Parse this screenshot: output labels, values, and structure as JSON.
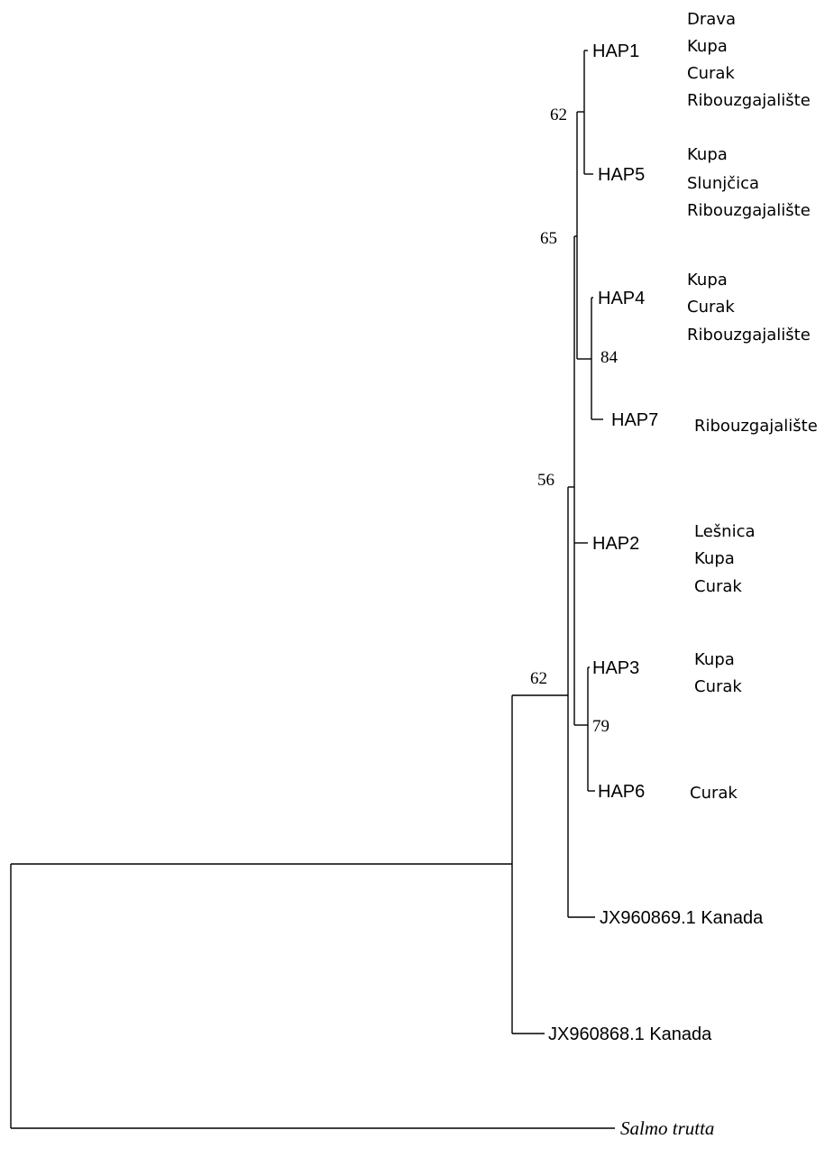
{
  "tree": {
    "tips": {
      "hap1": "HAP1",
      "hap5": "HAP5",
      "hap4": "HAP4",
      "hap7": "HAP7",
      "hap2": "HAP2",
      "hap3": "HAP3",
      "hap6": "HAP6",
      "jx960869": "JX960869.1 Kanada",
      "jx960868": "JX960868.1 Kanada",
      "outgroup": "Salmo trutta"
    },
    "locations": {
      "hap1": [
        "Drava",
        "Kupa",
        "Curak",
        "Ribouzgajalište"
      ],
      "hap5": [
        "Kupa",
        "Slunjčica",
        "Ribouzgajalište"
      ],
      "hap4": [
        "Kupa",
        "Curak",
        "Ribouzgajalište"
      ],
      "hap7": [
        "Ribouzgajalište"
      ],
      "hap2": [
        "Lešnica",
        "Kupa",
        "Curak"
      ],
      "hap3": [
        "Kupa",
        "Curak"
      ],
      "hap6": [
        "Curak"
      ]
    },
    "bootstrap": {
      "hap1_hap5": "62",
      "hap1_hap5_hap4_hap7": "65",
      "hap4_hap7": "84",
      "hap_clade": "56",
      "hap_clade_jx960869": "62",
      "hap3_hap6": "79"
    }
  }
}
